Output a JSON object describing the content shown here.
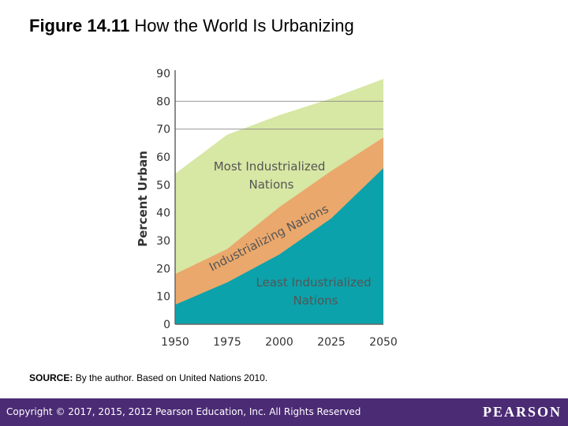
{
  "slide": {
    "figure_number": "Figure 14.11",
    "title": "How the World Is Urbanizing"
  },
  "source": {
    "label": "SOURCE:",
    "text": "By the author. Based on United Nations 2010."
  },
  "footer": {
    "copyright": "Copyright © 2017, 2015, 2012 Pearson Education, Inc. All Rights Reserved",
    "logo": "PEARSON",
    "background": "#4b2b74"
  },
  "chart_data": {
    "type": "area",
    "ylabel": "Percent Urban",
    "xlabel": "",
    "x": [
      1950,
      1975,
      2000,
      2025,
      2050
    ],
    "x_tick_labels": [
      "1950",
      "1975",
      "2000",
      "2025",
      "2050"
    ],
    "ylim": [
      0,
      90
    ],
    "y_ticks": [
      0,
      10,
      20,
      30,
      40,
      50,
      60,
      70,
      80,
      90
    ],
    "gridlines_at": [
      70,
      80
    ],
    "series": [
      {
        "name": "Most Industrialized Nations",
        "label_lines": [
          "Most Industrialized",
          "Nations"
        ],
        "values": [
          54,
          68,
          75,
          81,
          88
        ],
        "color": "#d7e7a4"
      },
      {
        "name": "Industrializing Nations",
        "label_lines": [
          "Industrializing Nations"
        ],
        "values": [
          18,
          27,
          42,
          55,
          67
        ],
        "color": "#eaa86c"
      },
      {
        "name": "Least Industrialized Nations",
        "label_lines": [
          "Least Industrialized",
          "Nations"
        ],
        "values": [
          7,
          15,
          25,
          38,
          56
        ],
        "color": "#0ba2ab"
      }
    ]
  }
}
